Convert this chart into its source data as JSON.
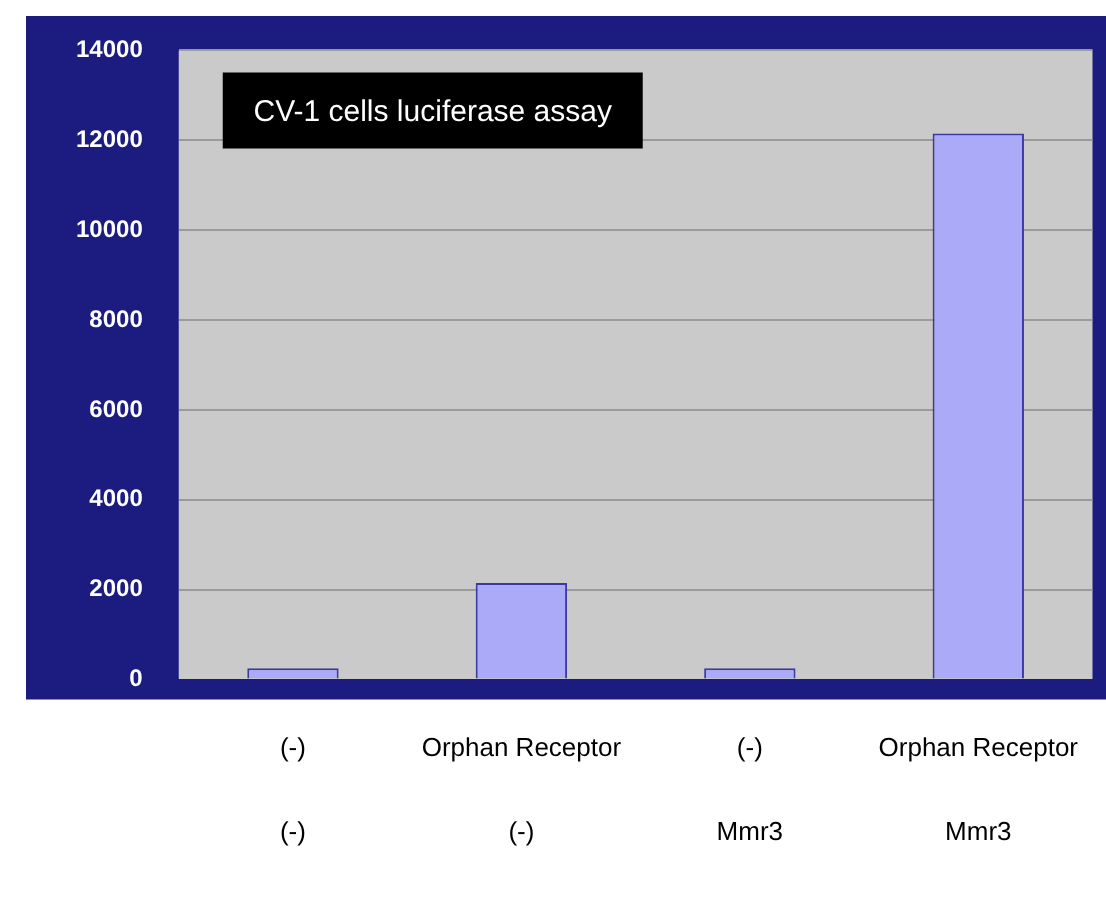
{
  "chart_data": {
    "type": "bar",
    "title": "CV-1 cells luciferase assay",
    "categories": [
      "(-)\n(-)",
      "Orphan Receptor\n(-)",
      "(-)\nMmr3",
      "Orphan Receptor\nMmr3"
    ],
    "values": [
      250,
      2150,
      250,
      12150
    ],
    "color": "#aaaaf8",
    "ylim": [
      0,
      14000
    ],
    "yticks": [
      0,
      2000,
      4000,
      6000,
      8000,
      10000,
      12000,
      14000
    ],
    "grid": "y",
    "legend": false
  }
}
